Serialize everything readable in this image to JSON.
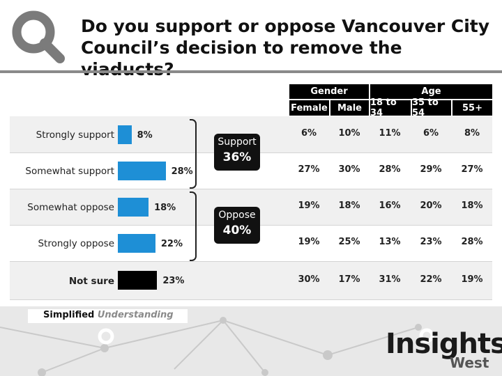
{
  "header": {
    "title_line1": "Do you support or oppose Vancouver City",
    "title_line2": "Council’s decision to remove the viaducts?"
  },
  "columns": {
    "gender_group": "Gender",
    "age_group": "Age",
    "headers": [
      "Female",
      "Male",
      "18 to 34",
      "35 to 54",
      "55+"
    ]
  },
  "groups": {
    "support": {
      "label": "Support",
      "value": "36%"
    },
    "oppose": {
      "label": "Oppose",
      "value": "40%"
    }
  },
  "chart_data": {
    "type": "bar",
    "orientation": "horizontal",
    "categories": [
      "Strongly support",
      "Somewhat support",
      "Somewhat oppose",
      "Strongly oppose",
      "Not sure"
    ],
    "values": [
      8,
      28,
      18,
      22,
      23
    ],
    "value_labels": [
      "8%",
      "28%",
      "18%",
      "22%",
      "23%"
    ],
    "bar_colors": [
      "#1e8fd6",
      "#1e8fd6",
      "#1e8fd6",
      "#1e8fd6",
      "#000000"
    ],
    "breakdown": {
      "columns": [
        "Female",
        "Male",
        "18 to 34",
        "35 to 54",
        "55+"
      ],
      "rows": [
        [
          "6%",
          "10%",
          "11%",
          "6%",
          "8%"
        ],
        [
          "27%",
          "30%",
          "28%",
          "29%",
          "27%"
        ],
        [
          "19%",
          "18%",
          "16%",
          "20%",
          "18%"
        ],
        [
          "19%",
          "25%",
          "13%",
          "23%",
          "28%"
        ],
        [
          "30%",
          "17%",
          "31%",
          "22%",
          "19%"
        ]
      ]
    }
  },
  "footer": {
    "simplified": "Simplified",
    "understanding": "Understanding",
    "brand": "Insights",
    "brand_sub": "West"
  }
}
